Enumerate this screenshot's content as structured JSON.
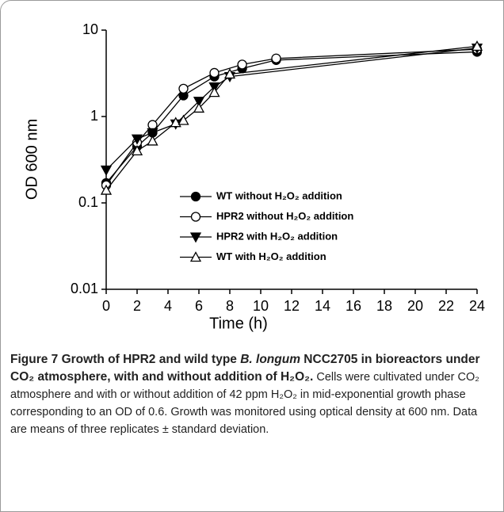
{
  "chart_data": {
    "type": "line",
    "xlabel": "Time (h)",
    "ylabel": "OD 600 nm",
    "xlim": [
      0,
      24
    ],
    "xticks": [
      0,
      2,
      4,
      6,
      8,
      10,
      12,
      14,
      16,
      18,
      20,
      22,
      24
    ],
    "ylim": [
      0.01,
      10
    ],
    "yticks": [
      0.01,
      0.1,
      1,
      10
    ],
    "yscale": "log",
    "series": [
      {
        "name": "WT without H₂O₂ addition",
        "color": "#000000",
        "marker": "circle",
        "filled": true,
        "x": [
          0,
          2,
          3,
          5,
          7,
          8.8,
          11,
          24
        ],
        "values": [
          0.17,
          0.45,
          0.65,
          1.75,
          2.9,
          3.6,
          4.5,
          5.6
        ]
      },
      {
        "name": "HPR2 without H₂O₂ addition",
        "color": "#000000",
        "marker": "circle",
        "filled": false,
        "x": [
          0,
          2,
          3,
          5,
          7,
          8.8,
          11,
          24
        ],
        "values": [
          0.16,
          0.5,
          0.8,
          2.1,
          3.2,
          4.0,
          4.7,
          6.0
        ]
      },
      {
        "name": "HPR2 with H₂O₂ addition",
        "color": "#000000",
        "marker": "triangle-down",
        "filled": true,
        "x": [
          0,
          2,
          3,
          4.5,
          6,
          7,
          8,
          24
        ],
        "values": [
          0.24,
          0.55,
          0.65,
          0.82,
          1.5,
          2.2,
          2.9,
          6.2
        ]
      },
      {
        "name": "WT with H₂O₂ addition",
        "color": "#000000",
        "marker": "triangle-up",
        "filled": false,
        "x": [
          0,
          2,
          3,
          4.5,
          5,
          6,
          7,
          8,
          24
        ],
        "values": [
          0.14,
          0.4,
          0.52,
          0.85,
          0.9,
          1.25,
          1.9,
          3.1,
          6.5
        ]
      }
    ]
  },
  "caption": {
    "title": [
      "Figure 7 Growth of HPR2 and wild type ",
      "B. longum",
      " NCC2705 in bioreactors under CO₂ atmosphere, with and without addition of H₂O₂."
    ],
    "text": "Cells were cultivated under CO₂ atmosphere and with or without addition of 42 ppm H₂O₂ in mid-exponential growth phase corresponding to an OD of 0.6. Growth was monitored using optical density at 600 nm. Data are means of three replicates ± standard deviation."
  }
}
